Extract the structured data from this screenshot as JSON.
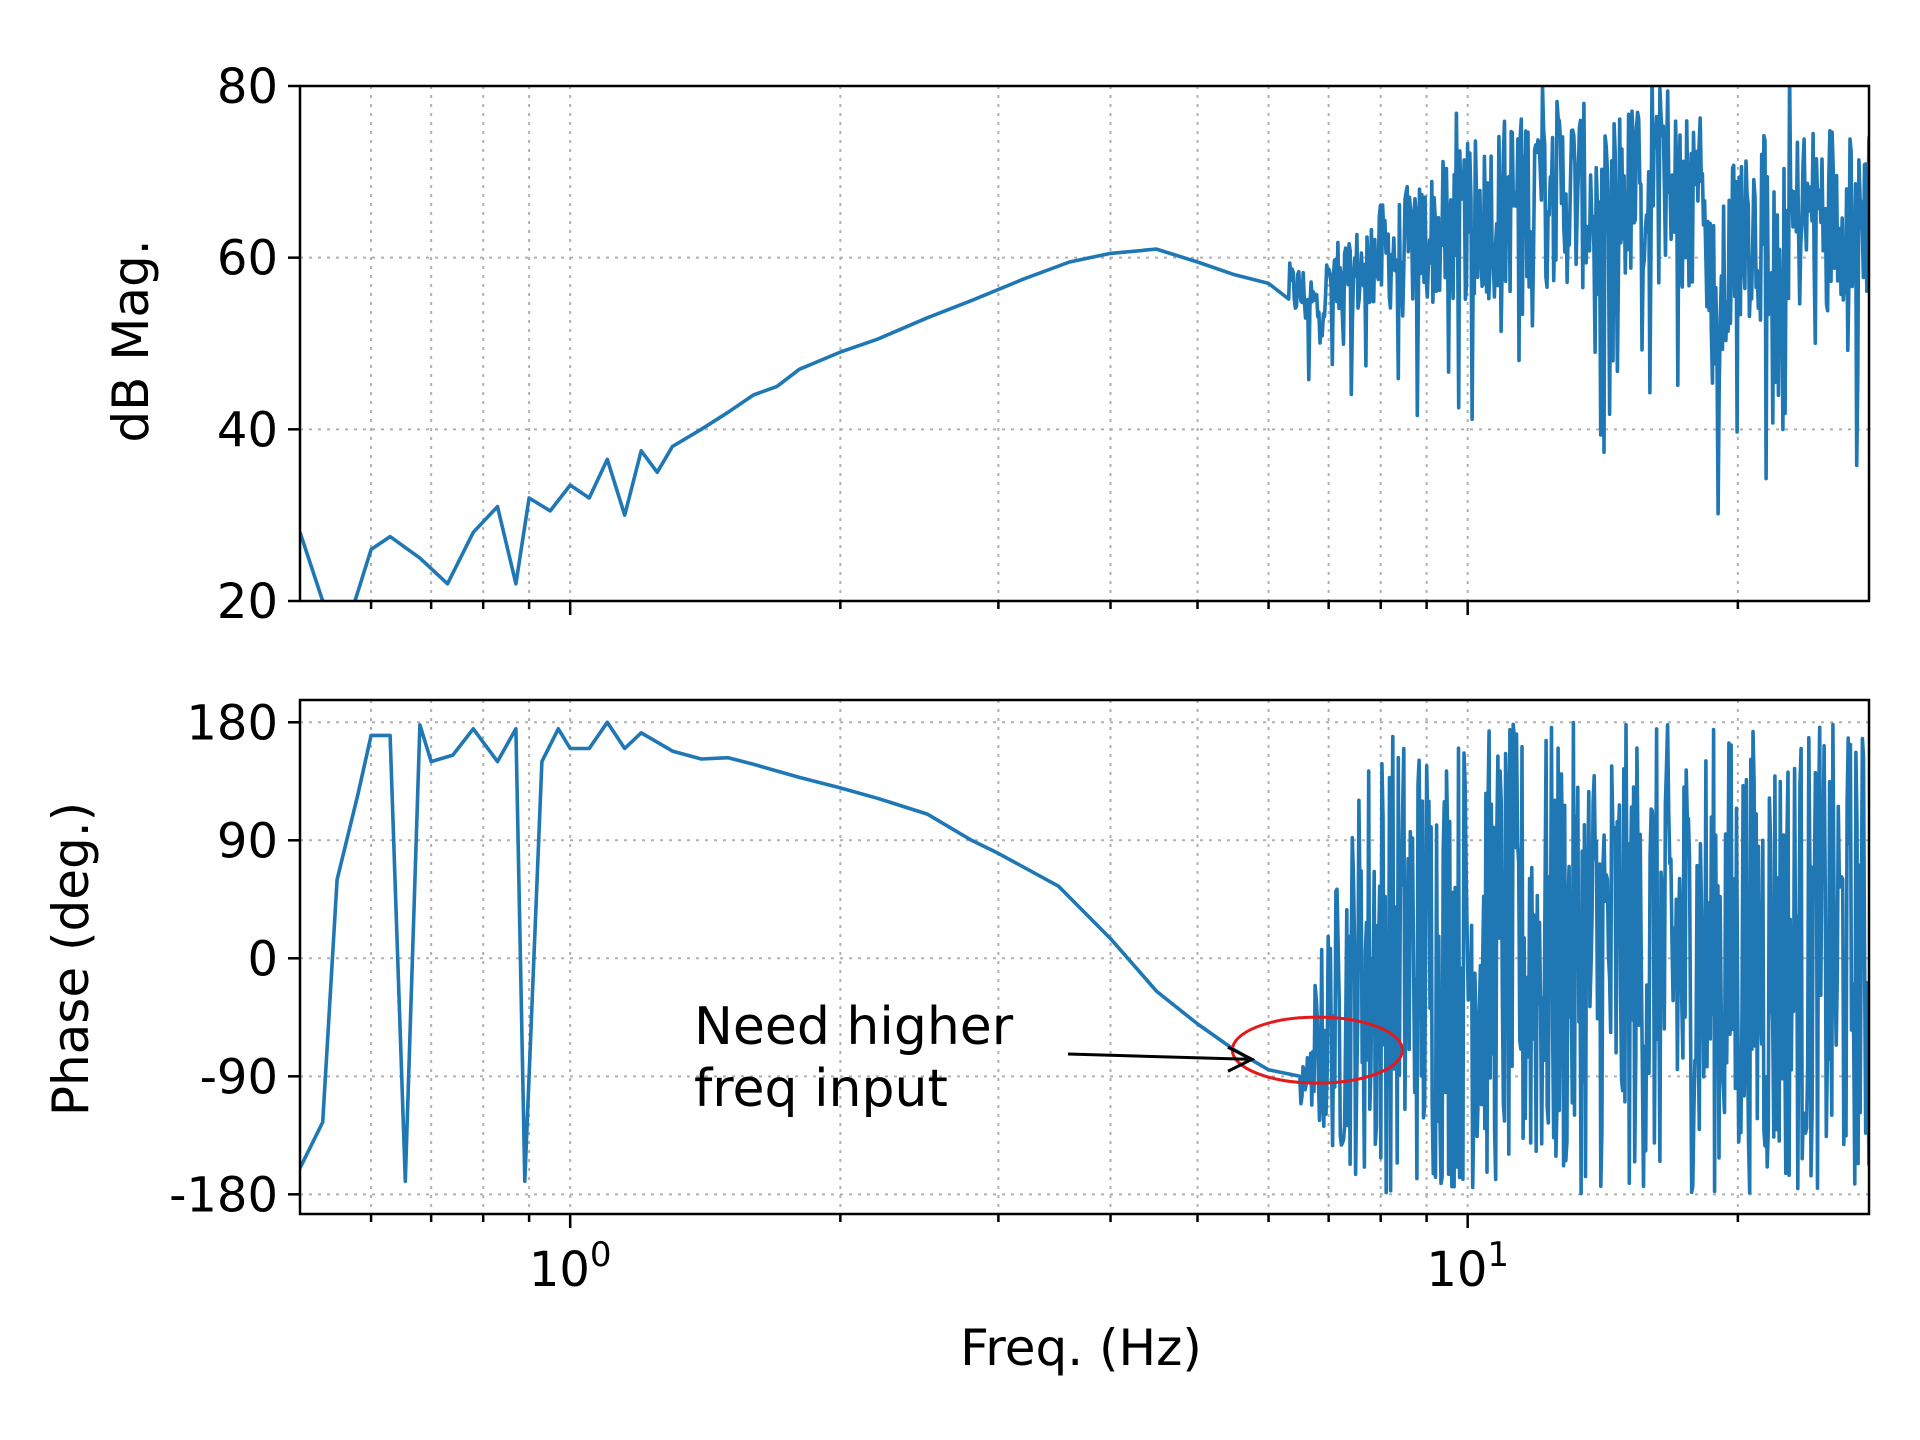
{
  "chart_data": [
    {
      "type": "line",
      "panel": "magnitude",
      "xscale": "log",
      "xlim": [
        0.5,
        28
      ],
      "ylim": [
        20,
        80
      ],
      "yticks": [
        20,
        40,
        60,
        80
      ],
      "ytick_labels": [
        "20",
        "40",
        "60",
        "80"
      ],
      "ylabel": "dB Mag.",
      "xlabel": "",
      "grid": true,
      "color": "#1f77b4",
      "x": [
        0.5,
        0.53,
        0.56,
        0.6,
        0.63,
        0.68,
        0.73,
        0.78,
        0.83,
        0.87,
        0.9,
        0.95,
        1.0,
        1.05,
        1.1,
        1.15,
        1.2,
        1.25,
        1.3,
        1.4,
        1.5,
        1.6,
        1.7,
        1.8,
        2.0,
        2.2,
        2.5,
        2.8,
        3.2,
        3.6,
        4.0,
        4.5,
        5.0,
        5.5,
        6.0,
        6.5,
        6.8,
        7.0,
        7.5,
        8.0,
        8.5,
        9.0,
        10.0,
        11.0,
        12.0,
        13.0,
        14.0,
        16.0,
        18.0,
        19.0,
        20.0,
        22.0,
        24.0,
        26.0,
        28.0
      ],
      "y": [
        28,
        20,
        16,
        26,
        27.5,
        25,
        22,
        28,
        31,
        22,
        32,
        30.5,
        33.5,
        32,
        36.5,
        30,
        37.5,
        35,
        38,
        40,
        42,
        44,
        45,
        47,
        49,
        50.5,
        53,
        55,
        57.5,
        59.5,
        60.5,
        61,
        59.5,
        58,
        57,
        56,
        54,
        56.5,
        58,
        60,
        61,
        62,
        64,
        66,
        68,
        67.5,
        66.5,
        68,
        67,
        52,
        64,
        63,
        65,
        66,
        66
      ],
      "noise_from_x": 6.3,
      "noise_amplitude": 8
    },
    {
      "type": "line",
      "panel": "phase",
      "xscale": "log",
      "xlim": [
        0.5,
        28
      ],
      "ylim": [
        -195,
        197
      ],
      "yticks": [
        -180,
        -90,
        0,
        90,
        180
      ],
      "ytick_labels": [
        "-180",
        "-90",
        "0",
        "90",
        "180"
      ],
      "xticks": [
        1,
        10
      ],
      "ylabel": "Phase (deg.)",
      "xlabel": "Freq. (Hz)",
      "grid": true,
      "color": "#1f77b4",
      "x": [
        0.5,
        0.53,
        0.55,
        0.58,
        0.6,
        0.63,
        0.655,
        0.68,
        0.7,
        0.74,
        0.78,
        0.83,
        0.87,
        0.89,
        0.93,
        0.97,
        1.0,
        1.05,
        1.1,
        1.15,
        1.2,
        1.3,
        1.4,
        1.5,
        1.6,
        1.8,
        2.0,
        2.2,
        2.5,
        2.8,
        3.0,
        3.5,
        4.0,
        4.5,
        5.0,
        5.5,
        6.0,
        6.5,
        7.0
      ],
      "y": [
        -160,
        -125,
        60,
        125,
        170,
        170,
        -170,
        178,
        150,
        155,
        175,
        150,
        175,
        -170,
        150,
        175,
        160,
        160,
        180,
        160,
        172,
        158,
        152,
        153,
        148,
        138,
        130,
        122,
        110,
        90,
        80,
        55,
        15,
        -25,
        -50,
        -70,
        -85,
        -90,
        -92
      ],
      "noise_from_x": 6.5,
      "noise_amplitude": 180,
      "annotation": {
        "text_lines": [
          "Need higher",
          "freq input"
        ],
        "arrow_to": [
          5.75,
          -77
        ],
        "ellipse_center": [
          6.8,
          -70
        ],
        "ellipse_color": "#e31a1c"
      }
    }
  ]
}
